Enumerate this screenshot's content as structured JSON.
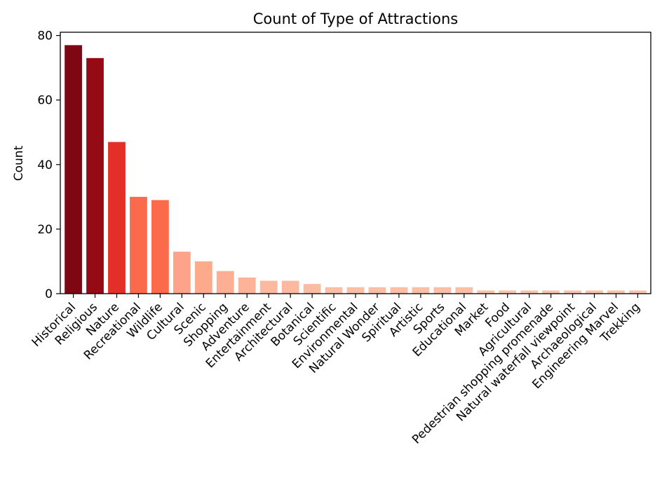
{
  "chart_data": {
    "type": "bar",
    "title": "Count of Type of Attractions",
    "xlabel": "",
    "ylabel": "Count",
    "ylim": [
      0,
      81
    ],
    "yticks": [
      0,
      20,
      40,
      60,
      80
    ],
    "grid": false,
    "categories": [
      "Historical",
      "Religious",
      "Nature",
      "Recreational",
      "Wildlife",
      "Cultural",
      "Scenic",
      "Shopping",
      "Adventure",
      "Entertainment",
      "Architectural",
      "Botanical",
      "Scientific",
      "Environmental",
      "Natural Wonder",
      "Spiritual",
      "Artistic",
      "Sports",
      "Educational",
      "Market",
      "Food",
      "Agricultural",
      "Pedestrian shopping promenade",
      "Natural waterfall viewpoint",
      "Archaeological",
      "Engineering Marvel",
      "Trekking"
    ],
    "values": [
      77,
      73,
      47,
      30,
      29,
      13,
      10,
      7,
      5,
      4,
      4,
      3,
      2,
      2,
      2,
      2,
      2,
      2,
      2,
      1,
      1,
      1,
      1,
      1,
      1,
      1,
      1
    ],
    "colors": [
      "#7f0713",
      "#940b16",
      "#e32f27",
      "#fb6b4b",
      "#fb6a4a",
      "#fca38a",
      "#fca98c",
      "#fcaf93",
      "#fcb398",
      "#fcb99f",
      "#fcb99f",
      "#fcbca2",
      "#fcbfa6",
      "#fcbfa6",
      "#fcbfa6",
      "#fcbfa6",
      "#fcbfa6",
      "#fcbfa6",
      "#fcbfa6",
      "#fcc3ab",
      "#fcc3ab",
      "#fcc3ab",
      "#fcc3ab",
      "#fcc3ab",
      "#fcc3ab",
      "#fcc3ab",
      "#fcc3ab"
    ]
  }
}
